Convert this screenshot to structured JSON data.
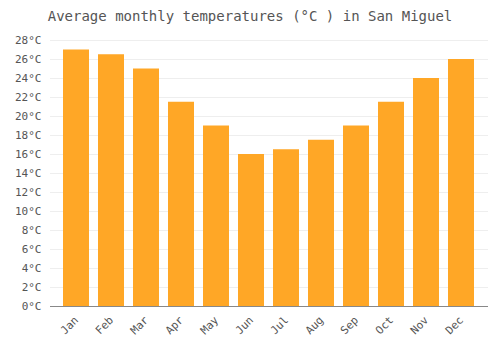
{
  "chart_data": {
    "type": "bar",
    "title": "Average monthly temperatures (°C ) in San Miguel",
    "categories": [
      "Jan",
      "Feb",
      "Mar",
      "Apr",
      "May",
      "Jun",
      "Jul",
      "Aug",
      "Sep",
      "Oct",
      "Nov",
      "Dec"
    ],
    "values": [
      27,
      26.5,
      25,
      21.5,
      19,
      16,
      16.5,
      17.5,
      19,
      21.5,
      24,
      26
    ],
    "color": "#FFA726",
    "ylim": [
      0,
      28
    ],
    "yticks": [
      {
        "value": 0,
        "label": "0°C"
      },
      {
        "value": 2,
        "label": "2°C"
      },
      {
        "value": 4,
        "label": "4°C"
      },
      {
        "value": 6,
        "label": "6°C"
      },
      {
        "value": 8,
        "label": "8°C"
      },
      {
        "value": 10,
        "label": "10°C"
      },
      {
        "value": 12,
        "label": "12°C"
      },
      {
        "value": 14,
        "label": "14°C"
      },
      {
        "value": 16,
        "label": "16°C"
      },
      {
        "value": 18,
        "label": "18°C"
      },
      {
        "value": 20,
        "label": "20°C"
      },
      {
        "value": 22,
        "label": "22°C"
      },
      {
        "value": 24,
        "label": "24°C"
      },
      {
        "value": 26,
        "label": "26°C"
      },
      {
        "value": 28,
        "label": "28°C"
      }
    ],
    "grid": true
  }
}
